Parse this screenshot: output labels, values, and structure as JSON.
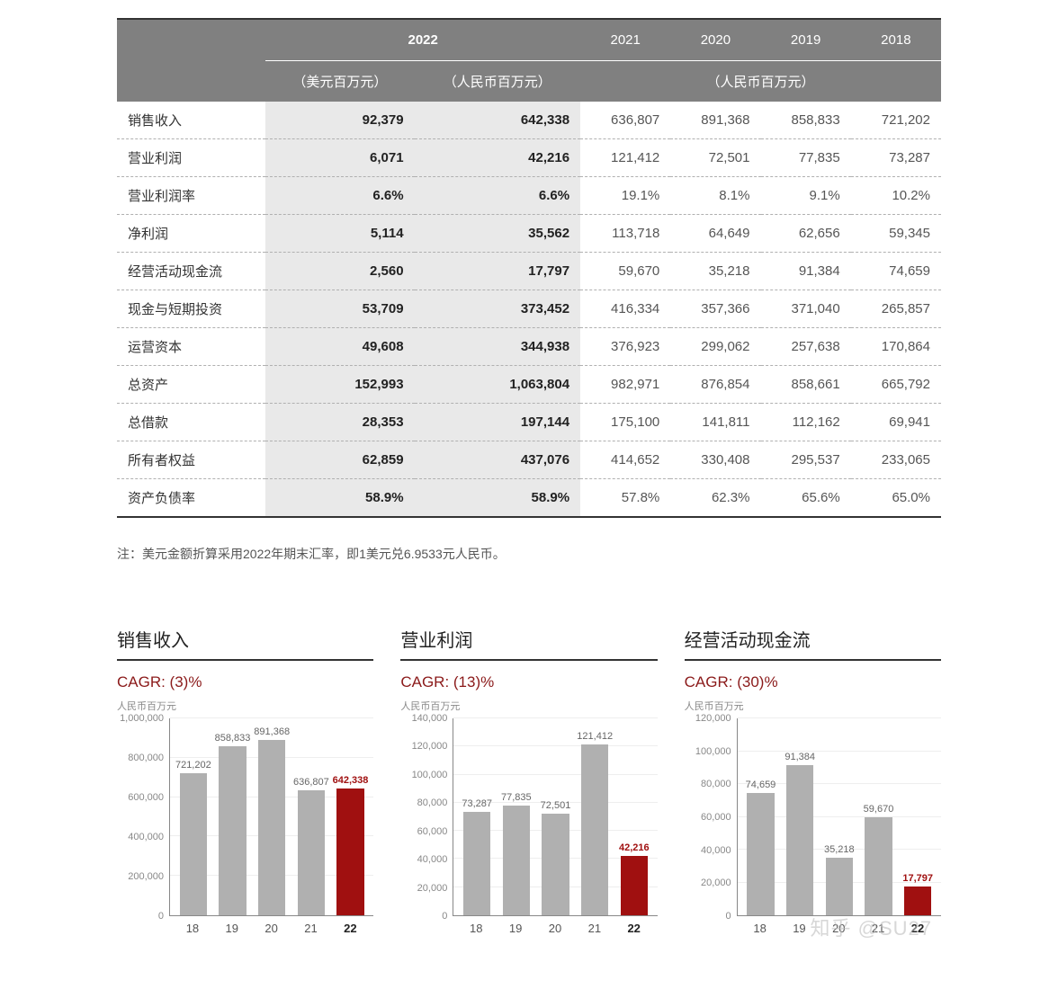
{
  "table": {
    "header_bg": "#808080",
    "header_fg": "#ffffff",
    "current_col_bg": "#e9e9e9",
    "border_color": "#333333",
    "dash_color": "#b0b0b0",
    "year_bold": "2022",
    "years_prev": [
      "2021",
      "2020",
      "2019",
      "2018"
    ],
    "unit_usd": "（美元百万元）",
    "unit_rmb_cur": "（人民币百万元）",
    "unit_rmb_prev": "（人民币百万元）",
    "rows": [
      {
        "label": "销售收入",
        "usd": "92,379",
        "rmb": "642,338",
        "p2021": "636,807",
        "p2020": "891,368",
        "p2019": "858,833",
        "p2018": "721,202"
      },
      {
        "label": "营业利润",
        "usd": "6,071",
        "rmb": "42,216",
        "p2021": "121,412",
        "p2020": "72,501",
        "p2019": "77,835",
        "p2018": "73,287"
      },
      {
        "label": "营业利润率",
        "usd": "6.6%",
        "rmb": "6.6%",
        "p2021": "19.1%",
        "p2020": "8.1%",
        "p2019": "9.1%",
        "p2018": "10.2%"
      },
      {
        "label": "净利润",
        "usd": "5,114",
        "rmb": "35,562",
        "p2021": "113,718",
        "p2020": "64,649",
        "p2019": "62,656",
        "p2018": "59,345"
      },
      {
        "label": "经营活动现金流",
        "usd": "2,560",
        "rmb": "17,797",
        "p2021": "59,670",
        "p2020": "35,218",
        "p2019": "91,384",
        "p2018": "74,659"
      },
      {
        "label": "现金与短期投资",
        "usd": "53,709",
        "rmb": "373,452",
        "p2021": "416,334",
        "p2020": "357,366",
        "p2019": "371,040",
        "p2018": "265,857"
      },
      {
        "label": "运营资本",
        "usd": "49,608",
        "rmb": "344,938",
        "p2021": "376,923",
        "p2020": "299,062",
        "p2019": "257,638",
        "p2018": "170,864"
      },
      {
        "label": "总资产",
        "usd": "152,993",
        "rmb": "1,063,804",
        "p2021": "982,971",
        "p2020": "876,854",
        "p2019": "858,661",
        "p2018": "665,792"
      },
      {
        "label": "总借款",
        "usd": "28,353",
        "rmb": "197,144",
        "p2021": "175,100",
        "p2020": "141,811",
        "p2019": "112,162",
        "p2018": "69,941"
      },
      {
        "label": "所有者权益",
        "usd": "62,859",
        "rmb": "437,076",
        "p2021": "414,652",
        "p2020": "330,408",
        "p2019": "295,537",
        "p2018": "233,065"
      },
      {
        "label": "资产负债率",
        "usd": "58.9%",
        "rmb": "58.9%",
        "p2021": "57.8%",
        "p2020": "62.3%",
        "p2019": "65.6%",
        "p2018": "65.0%"
      }
    ]
  },
  "footnote": "注：美元金额折算采用2022年期末汇率，即1美元兑6.9533元人民币。",
  "chart_common": {
    "bar_color": "#b0b0b0",
    "highlight_color": "#a01010",
    "grid_color": "#eeeeee",
    "axis_color": "#888888",
    "label_fontsize": 11,
    "x_labels": [
      "18",
      "19",
      "20",
      "21",
      "22"
    ],
    "highlight_index": 4,
    "unit_label": "人民币百万元"
  },
  "charts": [
    {
      "title": "销售收入",
      "cagr": "CAGR: (3)%",
      "ymax": 1000000,
      "ystep": 200000,
      "yticks": [
        "0",
        "200,000",
        "400,000",
        "600,000",
        "800,000",
        "1,000,000"
      ],
      "bars": [
        {
          "value": 721202,
          "label": "721,202"
        },
        {
          "value": 858833,
          "label": "858,833"
        },
        {
          "value": 891368,
          "label": "891,368"
        },
        {
          "value": 636807,
          "label": "636,807"
        },
        {
          "value": 642338,
          "label": "642,338"
        }
      ]
    },
    {
      "title": "营业利润",
      "cagr": "CAGR: (13)%",
      "ymax": 140000,
      "ystep": 20000,
      "yticks": [
        "0",
        "20,000",
        "40,000",
        "60,000",
        "80,000",
        "100,000",
        "120,000",
        "140,000"
      ],
      "bars": [
        {
          "value": 73287,
          "label": "73,287"
        },
        {
          "value": 77835,
          "label": "77,835"
        },
        {
          "value": 72501,
          "label": "72,501"
        },
        {
          "value": 121412,
          "label": "121,412"
        },
        {
          "value": 42216,
          "label": "42,216"
        }
      ]
    },
    {
      "title": "经营活动现金流",
      "cagr": "CAGR: (30)%",
      "ymax": 120000,
      "ystep": 20000,
      "yticks": [
        "0",
        "20,000",
        "40,000",
        "60,000",
        "80,000",
        "100,000",
        "120,000"
      ],
      "bars": [
        {
          "value": 74659,
          "label": "74,659"
        },
        {
          "value": 91384,
          "label": "91,384"
        },
        {
          "value": 35218,
          "label": "35,218"
        },
        {
          "value": 59670,
          "label": "59,670"
        },
        {
          "value": 17797,
          "label": "17,797"
        }
      ]
    }
  ],
  "watermark": "知乎 @SU27"
}
